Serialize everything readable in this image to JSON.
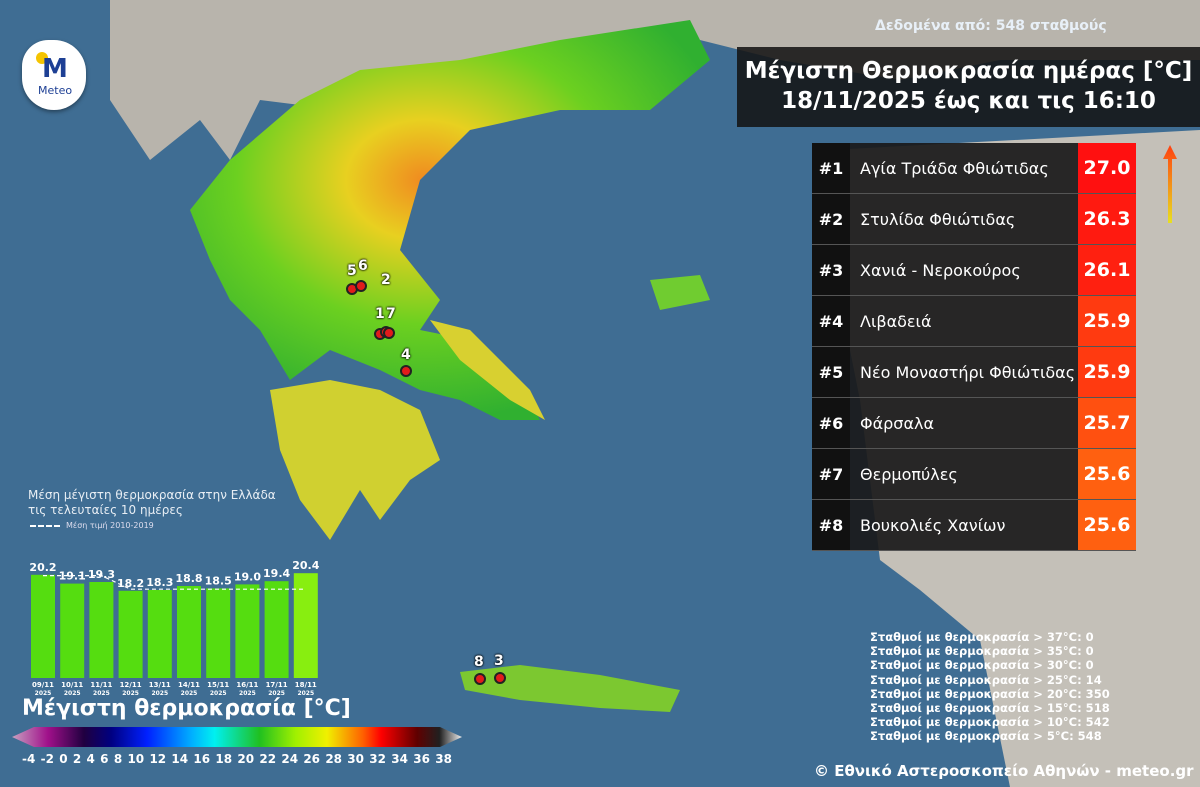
{
  "logo": {
    "text": "Meteo"
  },
  "source": "Δεδομένα από: 548 σταθμούς",
  "title": {
    "line1": "Μέγιστη Θερμοκρασία ημέρας [°C]",
    "line2": "18/11/2025 έως και τις 16:10"
  },
  "ranking": [
    {
      "rank": "#1",
      "station": "Αγία Τριάδα Φθιώτιδας",
      "value": "27.0",
      "color": "#ff1010"
    },
    {
      "rank": "#2",
      "station": "Στυλίδα Φθιώτιδας",
      "value": "26.3",
      "color": "#ff1a10"
    },
    {
      "rank": "#3",
      "station": "Χανιά - Νεροκούρος",
      "value": "26.1",
      "color": "#ff2010"
    },
    {
      "rank": "#4",
      "station": "Λιβαδειά",
      "value": "25.9",
      "color": "#ff3a10"
    },
    {
      "rank": "#5",
      "station": "Νέο Μοναστήρι Φθιώτιδας",
      "value": "25.9",
      "color": "#ff3a10"
    },
    {
      "rank": "#6",
      "station": "Φάρσαλα",
      "value": "25.7",
      "color": "#ff5010"
    },
    {
      "rank": "#7",
      "station": "Θερμοπύλες",
      "value": "25.6",
      "color": "#ff6010"
    },
    {
      "rank": "#8",
      "station": "Βουκολιές Χανίων",
      "value": "25.6",
      "color": "#ff6010"
    }
  ],
  "markers": [
    "1",
    "2",
    "3",
    "4",
    "5",
    "6",
    "7",
    "8"
  ],
  "chart_data": {
    "type": "bar",
    "title": "Μέση μέγιστη θερμοκρασία στην Ελλάδα τις τελευταίες 10 ημέρες",
    "title_line1": "Μέση μέγιστη θερμοκρασία στην Ελλάδα",
    "title_line2": "τις τελευταίες 10 ημέρες",
    "legend": "Μέση τιμή 2010-2019",
    "categories": [
      "09/11 2025",
      "10/11 2025",
      "11/11 2025",
      "12/11 2025",
      "13/11 2025",
      "14/11 2025",
      "15/11 2025",
      "16/11 2025",
      "17/11 2025",
      "18/11 2025"
    ],
    "cat_day": [
      "09/11",
      "10/11",
      "11/11",
      "12/11",
      "13/11",
      "14/11",
      "15/11",
      "16/11",
      "17/11",
      "18/11"
    ],
    "cat_year": "2025",
    "values": [
      20.2,
      19.1,
      19.3,
      18.2,
      18.3,
      18.8,
      18.5,
      19.0,
      19.4,
      20.4
    ],
    "value_labels": [
      "20.2",
      "19.1",
      "19.3",
      "18.2",
      "18.3",
      "18.8",
      "18.5",
      "19.0",
      "19.4",
      "20.4"
    ],
    "average_2010_2019": [
      20.1,
      20.1,
      20.1,
      18.4,
      18.4,
      18.4,
      18.4,
      18.4,
      18.4,
      18.4
    ],
    "bar_color": "#55dd10",
    "last_bar_color": "#88ee10"
  },
  "colorbar": {
    "title": "Μέγιστη θερμοκρασία [°C]",
    "ticks": [
      "-4",
      "-2",
      "0",
      "2",
      "4",
      "6",
      "8",
      "10",
      "12",
      "14",
      "16",
      "18",
      "20",
      "22",
      "24",
      "26",
      "28",
      "30",
      "32",
      "34",
      "36",
      "38"
    ]
  },
  "stats": [
    "Σταθμοί με θερμοκρασία > 37°C: 0",
    "Σταθμοί με θερμοκρασία > 35°C: 0",
    "Σταθμοί με θερμοκρασία > 30°C: 0",
    "Σταθμοί με θερμοκρασία > 25°C: 14",
    "Σταθμοί με θερμοκρασία > 20°C: 350",
    "Σταθμοί με θερμοκρασία > 15°C: 518",
    "Σταθμοί με θερμοκρασία > 10°C: 542",
    "Σταθμοί με θερμοκρασία > 5°C: 548"
  ],
  "copyright": "© Εθνικό Αστεροσκοπείο Αθηνών - meteo.gr"
}
